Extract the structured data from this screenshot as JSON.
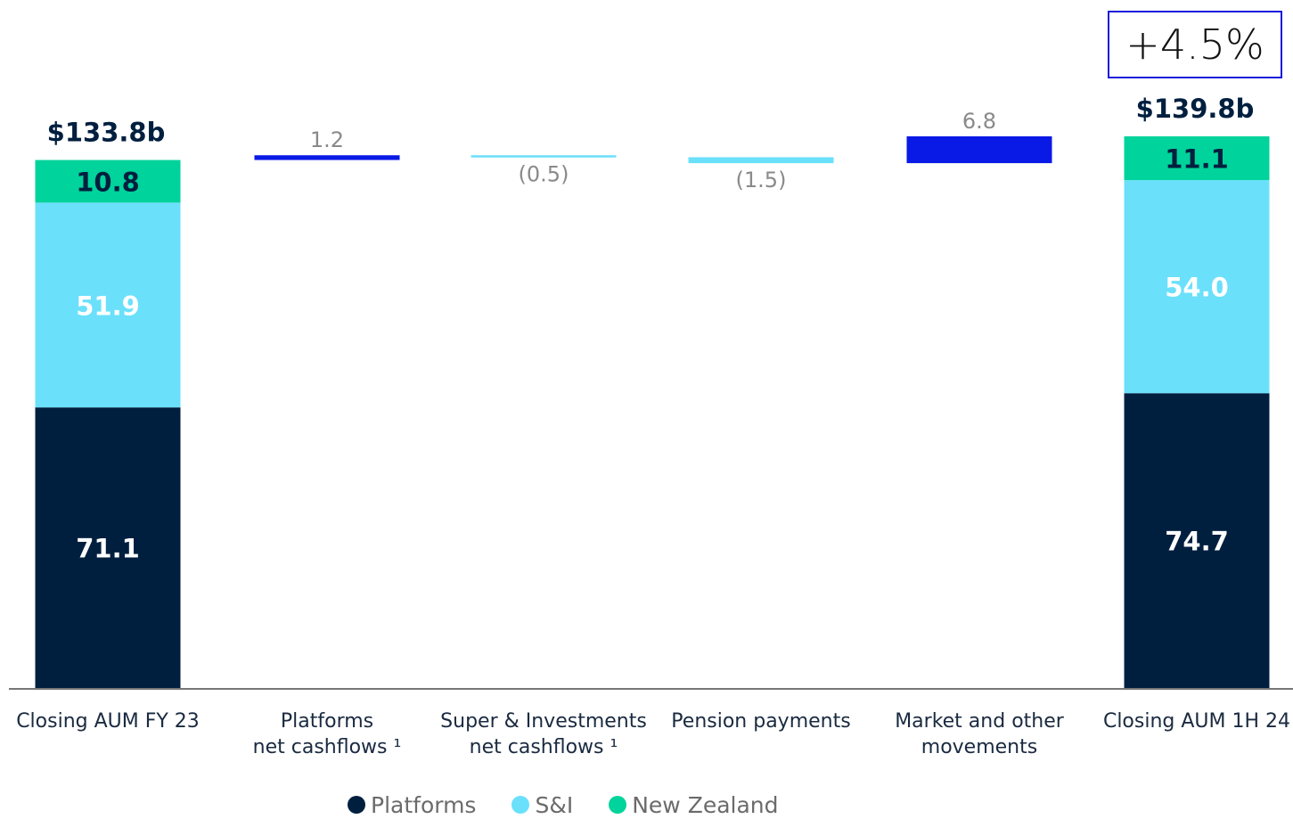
{
  "growth_badge": "+4.5%",
  "legend": [
    {
      "label": "Platforms",
      "color": "#001f3f"
    },
    {
      "label": "S&I",
      "color": "#6be0fb"
    },
    {
      "label": "New Zealand",
      "color": "#00d39b"
    }
  ],
  "chart_data": {
    "type": "bar",
    "subtype": "waterfall",
    "categories": [
      "Closing AUM FY 23",
      "Platforms net cashflows ¹",
      "Super & Investments net cashflows ¹",
      "Pension payments",
      "Market and other movements",
      "Closing AUM 1H 24"
    ],
    "category_lines": [
      [
        "Closing AUM FY 23"
      ],
      [
        "Platforms",
        "net cashflows ¹"
      ],
      [
        "Super & Investments",
        "net cashflows ¹"
      ],
      [
        "Pension payments"
      ],
      [
        "Market and other",
        "movements"
      ],
      [
        "Closing AUM 1H 24"
      ]
    ],
    "totals": [
      {
        "category": "Closing AUM FY 23",
        "total_label": "$133.8b",
        "stacks": [
          {
            "series": "Platforms",
            "value": 71.1,
            "label": "71.1"
          },
          {
            "series": "S&I",
            "value": 51.9,
            "label": "51.9"
          },
          {
            "series": "New Zealand",
            "value": 10.8,
            "label": "10.8"
          }
        ]
      },
      {
        "category": "Closing AUM 1H 24",
        "total_label": "$139.8b",
        "stacks": [
          {
            "series": "Platforms",
            "value": 74.7,
            "label": "74.7"
          },
          {
            "series": "S&I",
            "value": 54.0,
            "label": "54.0"
          },
          {
            "series": "New Zealand",
            "value": 11.1,
            "label": "11.1"
          }
        ]
      }
    ],
    "changes": [
      {
        "category": "Platforms net cashflows ¹",
        "value": 1.2,
        "label": "1.2",
        "series": "Platforms"
      },
      {
        "category": "Super & Investments net cashflows ¹",
        "value": -0.5,
        "label": "(0.5)",
        "series": "S&I"
      },
      {
        "category": "Pension payments",
        "value": -1.5,
        "label": "(1.5)",
        "series": "S&I"
      },
      {
        "category": "Market and other movements",
        "value": 6.8,
        "label": "6.8",
        "series": "Platforms-movement"
      }
    ],
    "colors": {
      "Platforms": "#001f3f",
      "S&I": "#6be0fb",
      "New Zealand": "#00d39b",
      "movement_positive": "#0a1ae6",
      "movement_negative": "#6be0fb"
    },
    "ylim": [
      0,
      140
    ],
    "grid": false
  }
}
